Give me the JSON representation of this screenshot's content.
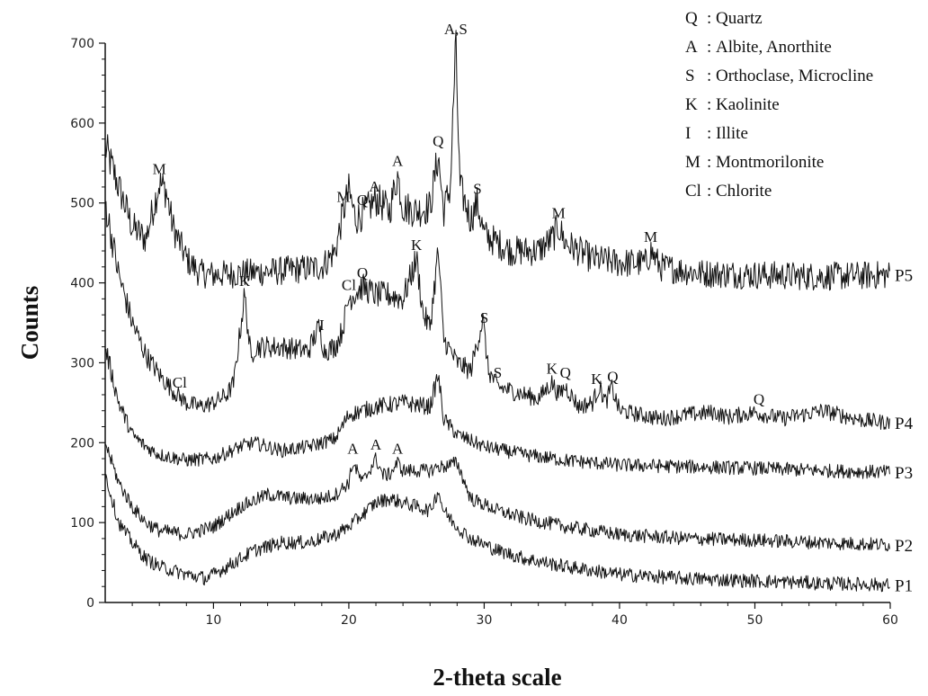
{
  "chart_data": {
    "type": "line",
    "title": "",
    "xlabel": "2-theta scale",
    "ylabel": "Counts",
    "xlim": [
      2,
      60
    ],
    "ylim": [
      0,
      700
    ],
    "x_ticks": [
      10,
      20,
      30,
      40,
      50,
      60
    ],
    "y_ticks": [
      0,
      100,
      200,
      300,
      400,
      500,
      600,
      700
    ],
    "grid": false,
    "legend_position": "top-right",
    "legend": [
      {
        "code": "Q",
        "name": "Quartz"
      },
      {
        "code": "A",
        "name": "Albite, Anorthite"
      },
      {
        "code": "S",
        "name": "Orthoclase, Microcline"
      },
      {
        "code": "K",
        "name": "Kaolinite"
      },
      {
        "code": "I",
        "name": "Illite"
      },
      {
        "code": "M",
        "name": "Montmorilonite"
      },
      {
        "code": "Cl",
        "name": "Chlorite"
      }
    ],
    "series": [
      {
        "name": "P5",
        "points": [
          [
            2,
            570
          ],
          [
            3,
            520
          ],
          [
            4,
            470
          ],
          [
            5,
            455
          ],
          [
            5.5,
            490
          ],
          [
            6,
            525
          ],
          [
            6.5,
            515
          ],
          [
            7,
            470
          ],
          [
            8,
            430
          ],
          [
            9,
            412
          ],
          [
            10,
            410
          ],
          [
            12,
            412
          ],
          [
            15,
            415
          ],
          [
            18,
            420
          ],
          [
            19,
            440
          ],
          [
            19.6,
            490
          ],
          [
            20,
            515
          ],
          [
            20.5,
            480
          ],
          [
            21.3,
            490
          ],
          [
            22,
            505
          ],
          [
            23,
            490
          ],
          [
            23.6,
            535
          ],
          [
            24,
            495
          ],
          [
            25,
            490
          ],
          [
            26,
            495
          ],
          [
            26.6,
            560
          ],
          [
            27,
            490
          ],
          [
            27.5,
            520
          ],
          [
            27.9,
            700
          ],
          [
            28.2,
            520
          ],
          [
            29,
            480
          ],
          [
            29.5,
            500
          ],
          [
            30,
            460
          ],
          [
            32,
            440
          ],
          [
            34,
            440
          ],
          [
            35,
            455
          ],
          [
            35.5,
            470
          ],
          [
            36,
            450
          ],
          [
            38,
            430
          ],
          [
            40,
            425
          ],
          [
            42,
            425
          ],
          [
            42.3,
            440
          ],
          [
            43,
            420
          ],
          [
            46,
            412
          ],
          [
            50,
            410
          ],
          [
            55,
            408
          ],
          [
            60,
            410
          ]
        ],
        "peaks": [
          {
            "x": 6,
            "label": "M"
          },
          {
            "x": 19.6,
            "label": "M"
          },
          {
            "x": 21,
            "label": "Q"
          },
          {
            "x": 21.9,
            "label": "A"
          },
          {
            "x": 23.6,
            "label": "A"
          },
          {
            "x": 26.6,
            "label": "Q"
          },
          {
            "x": 27.9,
            "label": "A,S"
          },
          {
            "x": 29.5,
            "label": "S"
          },
          {
            "x": 35.5,
            "label": "M"
          },
          {
            "x": 42.3,
            "label": "M"
          }
        ]
      },
      {
        "name": "P4",
        "points": [
          [
            2,
            500
          ],
          [
            3,
            410
          ],
          [
            4,
            350
          ],
          [
            5,
            310
          ],
          [
            6,
            285
          ],
          [
            7,
            265
          ],
          [
            8,
            250
          ],
          [
            9,
            245
          ],
          [
            10,
            250
          ],
          [
            11,
            260
          ],
          [
            11.5,
            275
          ],
          [
            12.3,
            385
          ],
          [
            12.8,
            300
          ],
          [
            13,
            320
          ],
          [
            15,
            320
          ],
          [
            17,
            315
          ],
          [
            17.8,
            345
          ],
          [
            18.2,
            315
          ],
          [
            19,
            320
          ],
          [
            19.5,
            340
          ],
          [
            20,
            380
          ],
          [
            21,
            395
          ],
          [
            22,
            385
          ],
          [
            23,
            385
          ],
          [
            24,
            380
          ],
          [
            25,
            430
          ],
          [
            25.5,
            360
          ],
          [
            26,
            345
          ],
          [
            26.6,
            440
          ],
          [
            27,
            330
          ],
          [
            28,
            300
          ],
          [
            29,
            290
          ],
          [
            29.9,
            355
          ],
          [
            30.3,
            290
          ],
          [
            31,
            270
          ],
          [
            32,
            265
          ],
          [
            34,
            255
          ],
          [
            35,
            275
          ],
          [
            35.5,
            260
          ],
          [
            36,
            270
          ],
          [
            37,
            245
          ],
          [
            38,
            250
          ],
          [
            38.5,
            270
          ],
          [
            39,
            250
          ],
          [
            39.4,
            270
          ],
          [
            40,
            240
          ],
          [
            43,
            230
          ],
          [
            45,
            235
          ],
          [
            47,
            238
          ],
          [
            48,
            232
          ],
          [
            50,
            238
          ],
          [
            52,
            230
          ],
          [
            55,
            240
          ],
          [
            58,
            228
          ],
          [
            60,
            225
          ]
        ],
        "peaks": [
          {
            "x": 7.5,
            "label": "Cl"
          },
          {
            "x": 12.3,
            "label": "K"
          },
          {
            "x": 18,
            "label": "I"
          },
          {
            "x": 20,
            "label": "Cl"
          },
          {
            "x": 21,
            "label": "Q"
          },
          {
            "x": 25,
            "label": "K"
          },
          {
            "x": 30,
            "label": "S"
          },
          {
            "x": 31,
            "label": "S"
          },
          {
            "x": 35,
            "label": "K"
          },
          {
            "x": 36,
            "label": "Q"
          },
          {
            "x": 38.3,
            "label": "K"
          },
          {
            "x": 39.5,
            "label": "Q"
          },
          {
            "x": 50.3,
            "label": "Q"
          }
        ]
      },
      {
        "name": "P3",
        "points": [
          [
            2,
            320
          ],
          [
            3,
            250
          ],
          [
            4,
            210
          ],
          [
            5,
            195
          ],
          [
            6,
            185
          ],
          [
            8,
            178
          ],
          [
            10,
            180
          ],
          [
            12,
            195
          ],
          [
            13,
            200
          ],
          [
            15,
            190
          ],
          [
            17,
            195
          ],
          [
            19,
            205
          ],
          [
            20,
            235
          ],
          [
            22,
            245
          ],
          [
            24,
            250
          ],
          [
            26,
            245
          ],
          [
            26.6,
            285
          ],
          [
            27,
            230
          ],
          [
            28,
            210
          ],
          [
            30,
            195
          ],
          [
            33,
            185
          ],
          [
            36,
            178
          ],
          [
            40,
            172
          ],
          [
            45,
            170
          ],
          [
            50,
            168
          ],
          [
            55,
            165
          ],
          [
            60,
            163
          ]
        ],
        "peaks": []
      },
      {
        "name": "P2",
        "points": [
          [
            2,
            200
          ],
          [
            3,
            150
          ],
          [
            4,
            120
          ],
          [
            5,
            100
          ],
          [
            6,
            90
          ],
          [
            8,
            85
          ],
          [
            10,
            95
          ],
          [
            12,
            120
          ],
          [
            14,
            135
          ],
          [
            16,
            130
          ],
          [
            18,
            130
          ],
          [
            19,
            135
          ],
          [
            20,
            150
          ],
          [
            20.3,
            175
          ],
          [
            21,
            150
          ],
          [
            22,
            180
          ],
          [
            22.5,
            160
          ],
          [
            23,
            160
          ],
          [
            23.6,
            175
          ],
          [
            24,
            165
          ],
          [
            25,
            165
          ],
          [
            26,
            165
          ],
          [
            26.6,
            170
          ],
          [
            27,
            170
          ],
          [
            28,
            175
          ],
          [
            29,
            130
          ],
          [
            31,
            115
          ],
          [
            33,
            105
          ],
          [
            36,
            95
          ],
          [
            40,
            85
          ],
          [
            45,
            80
          ],
          [
            50,
            78
          ],
          [
            55,
            75
          ],
          [
            60,
            72
          ]
        ],
        "peaks": [
          {
            "x": 20.3,
            "label": "A"
          },
          {
            "x": 22,
            "label": "A"
          },
          {
            "x": 23.6,
            "label": "A"
          }
        ]
      },
      {
        "name": "P1",
        "points": [
          [
            2,
            160
          ],
          [
            3,
            100
          ],
          [
            4,
            75
          ],
          [
            5,
            55
          ],
          [
            6,
            45
          ],
          [
            8,
            35
          ],
          [
            9.5,
            30
          ],
          [
            11,
            45
          ],
          [
            13,
            65
          ],
          [
            15,
            75
          ],
          [
            17,
            75
          ],
          [
            19,
            85
          ],
          [
            20,
            95
          ],
          [
            21,
            110
          ],
          [
            22,
            125
          ],
          [
            23,
            130
          ],
          [
            24,
            125
          ],
          [
            25,
            120
          ],
          [
            26,
            115
          ],
          [
            26.6,
            140
          ],
          [
            27,
            115
          ],
          [
            28,
            95
          ],
          [
            29,
            80
          ],
          [
            31,
            65
          ],
          [
            33,
            55
          ],
          [
            36,
            45
          ],
          [
            40,
            35
          ],
          [
            45,
            30
          ],
          [
            50,
            27
          ],
          [
            55,
            24
          ],
          [
            60,
            22
          ]
        ],
        "peaks": []
      }
    ]
  }
}
